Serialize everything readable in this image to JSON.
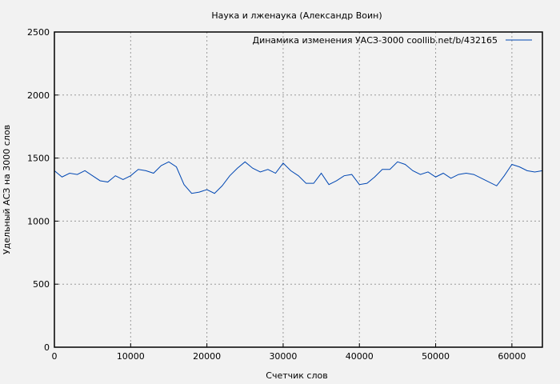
{
  "chart_data": {
    "type": "line",
    "title": "Наука и лженаука (Александр Воин)",
    "xlabel": "Счетчик слов",
    "ylabel": "Удельный АСЗ на 3000 слов",
    "xlim": [
      0,
      64000
    ],
    "ylim": [
      0,
      2500
    ],
    "xticks": [
      0,
      10000,
      20000,
      30000,
      40000,
      50000,
      60000
    ],
    "yticks": [
      0,
      500,
      1000,
      1500,
      2000,
      2500
    ],
    "grid": true,
    "legend_position": "top-right",
    "series": [
      {
        "name": "Динамика изменения УАСЗ-3000  coollib.net/b/432165",
        "color": "#0047b3",
        "x": [
          0,
          1000,
          2000,
          3000,
          4000,
          5000,
          6000,
          7000,
          8000,
          9000,
          10000,
          11000,
          12000,
          13000,
          14000,
          15000,
          16000,
          17000,
          18000,
          19000,
          20000,
          21000,
          22000,
          23000,
          24000,
          25000,
          26000,
          27000,
          28000,
          29000,
          30000,
          31000,
          32000,
          33000,
          34000,
          35000,
          36000,
          37000,
          38000,
          39000,
          40000,
          41000,
          42000,
          43000,
          44000,
          45000,
          46000,
          47000,
          48000,
          49000,
          50000,
          51000,
          52000,
          53000,
          54000,
          55000,
          56000,
          57000,
          58000,
          59000,
          60000,
          61000,
          62000,
          63000,
          64000
        ],
        "y": [
          1400,
          1350,
          1380,
          1370,
          1400,
          1360,
          1320,
          1310,
          1360,
          1330,
          1360,
          1410,
          1400,
          1380,
          1440,
          1470,
          1430,
          1290,
          1220,
          1230,
          1250,
          1220,
          1280,
          1360,
          1420,
          1470,
          1420,
          1390,
          1410,
          1380,
          1460,
          1400,
          1360,
          1300,
          1300,
          1380,
          1290,
          1320,
          1360,
          1370,
          1290,
          1300,
          1350,
          1410,
          1410,
          1470,
          1450,
          1400,
          1370,
          1390,
          1350,
          1380,
          1340,
          1370,
          1380,
          1370,
          1340,
          1310,
          1280,
          1360,
          1450,
          1430,
          1400,
          1390,
          1400
        ]
      }
    ]
  }
}
